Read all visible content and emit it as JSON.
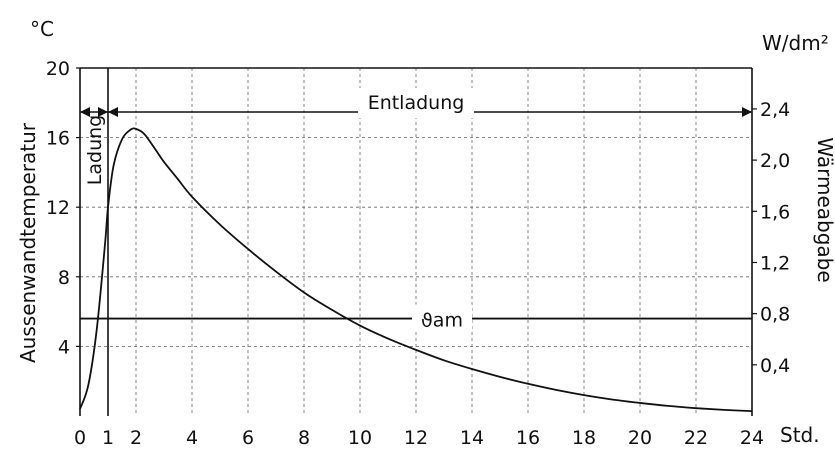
{
  "chart_data": {
    "type": "line",
    "title": "",
    "xlabel": "",
    "x_unit": "Std.",
    "xlim": [
      0,
      24
    ],
    "x_ticks": [
      0,
      1,
      2,
      4,
      6,
      8,
      10,
      12,
      14,
      16,
      18,
      20,
      22,
      24
    ],
    "x_tick_labels": [
      "0",
      "1",
      "2",
      "4",
      "6",
      "8",
      "10",
      "12",
      "14",
      "16",
      "18",
      "20",
      "22",
      "24"
    ],
    "y_left": {
      "label": "Aussenwandtemperatur",
      "unit": "°C",
      "lim": [
        0,
        20
      ],
      "ticks": [
        4,
        8,
        12,
        16,
        20
      ],
      "tick_labels": [
        "4",
        "8",
        "12",
        "16",
        "20"
      ]
    },
    "y_right": {
      "label": "Wärmeabgabe",
      "unit": "W/dm²",
      "lim": [
        0,
        2.72
      ],
      "ticks": [
        0.4,
        0.8,
        1.2,
        1.6,
        2.0,
        2.4
      ],
      "tick_labels": [
        "0,4",
        "0,8",
        "1,2",
        "1,6",
        "2,0",
        "2,4"
      ]
    },
    "grid": true,
    "series": [
      {
        "name": "",
        "x": [
          0,
          0.3,
          0.6,
          0.9,
          1.0,
          1.2,
          1.5,
          1.8,
          2.0,
          2.3,
          2.7,
          3.0,
          3.5,
          4.0,
          5.0,
          6.0,
          7.0,
          8.0,
          9.0,
          10.0,
          11.0,
          12.0,
          13.0,
          14.0,
          15.0,
          16.0,
          17.0,
          18.0,
          19.0,
          20.0,
          21.0,
          22.0,
          23.0,
          24.0
        ],
        "y": [
          0.4,
          1.8,
          5.0,
          10.0,
          12.0,
          14.4,
          15.9,
          16.45,
          16.5,
          16.2,
          15.3,
          14.6,
          13.6,
          12.6,
          11.0,
          9.6,
          8.3,
          7.1,
          6.1,
          5.2,
          4.45,
          3.8,
          3.2,
          2.7,
          2.25,
          1.85,
          1.5,
          1.2,
          0.95,
          0.75,
          0.58,
          0.45,
          0.35,
          0.28
        ]
      }
    ],
    "reference_line": {
      "label": "ϑam",
      "y": 5.6
    },
    "phase_markers": [
      {
        "label": "Ladung",
        "x_from": 0,
        "x_to": 1
      },
      {
        "label": "Entladung",
        "x_from": 1,
        "x_to": 24
      }
    ],
    "vertical_marker_x": 1
  }
}
